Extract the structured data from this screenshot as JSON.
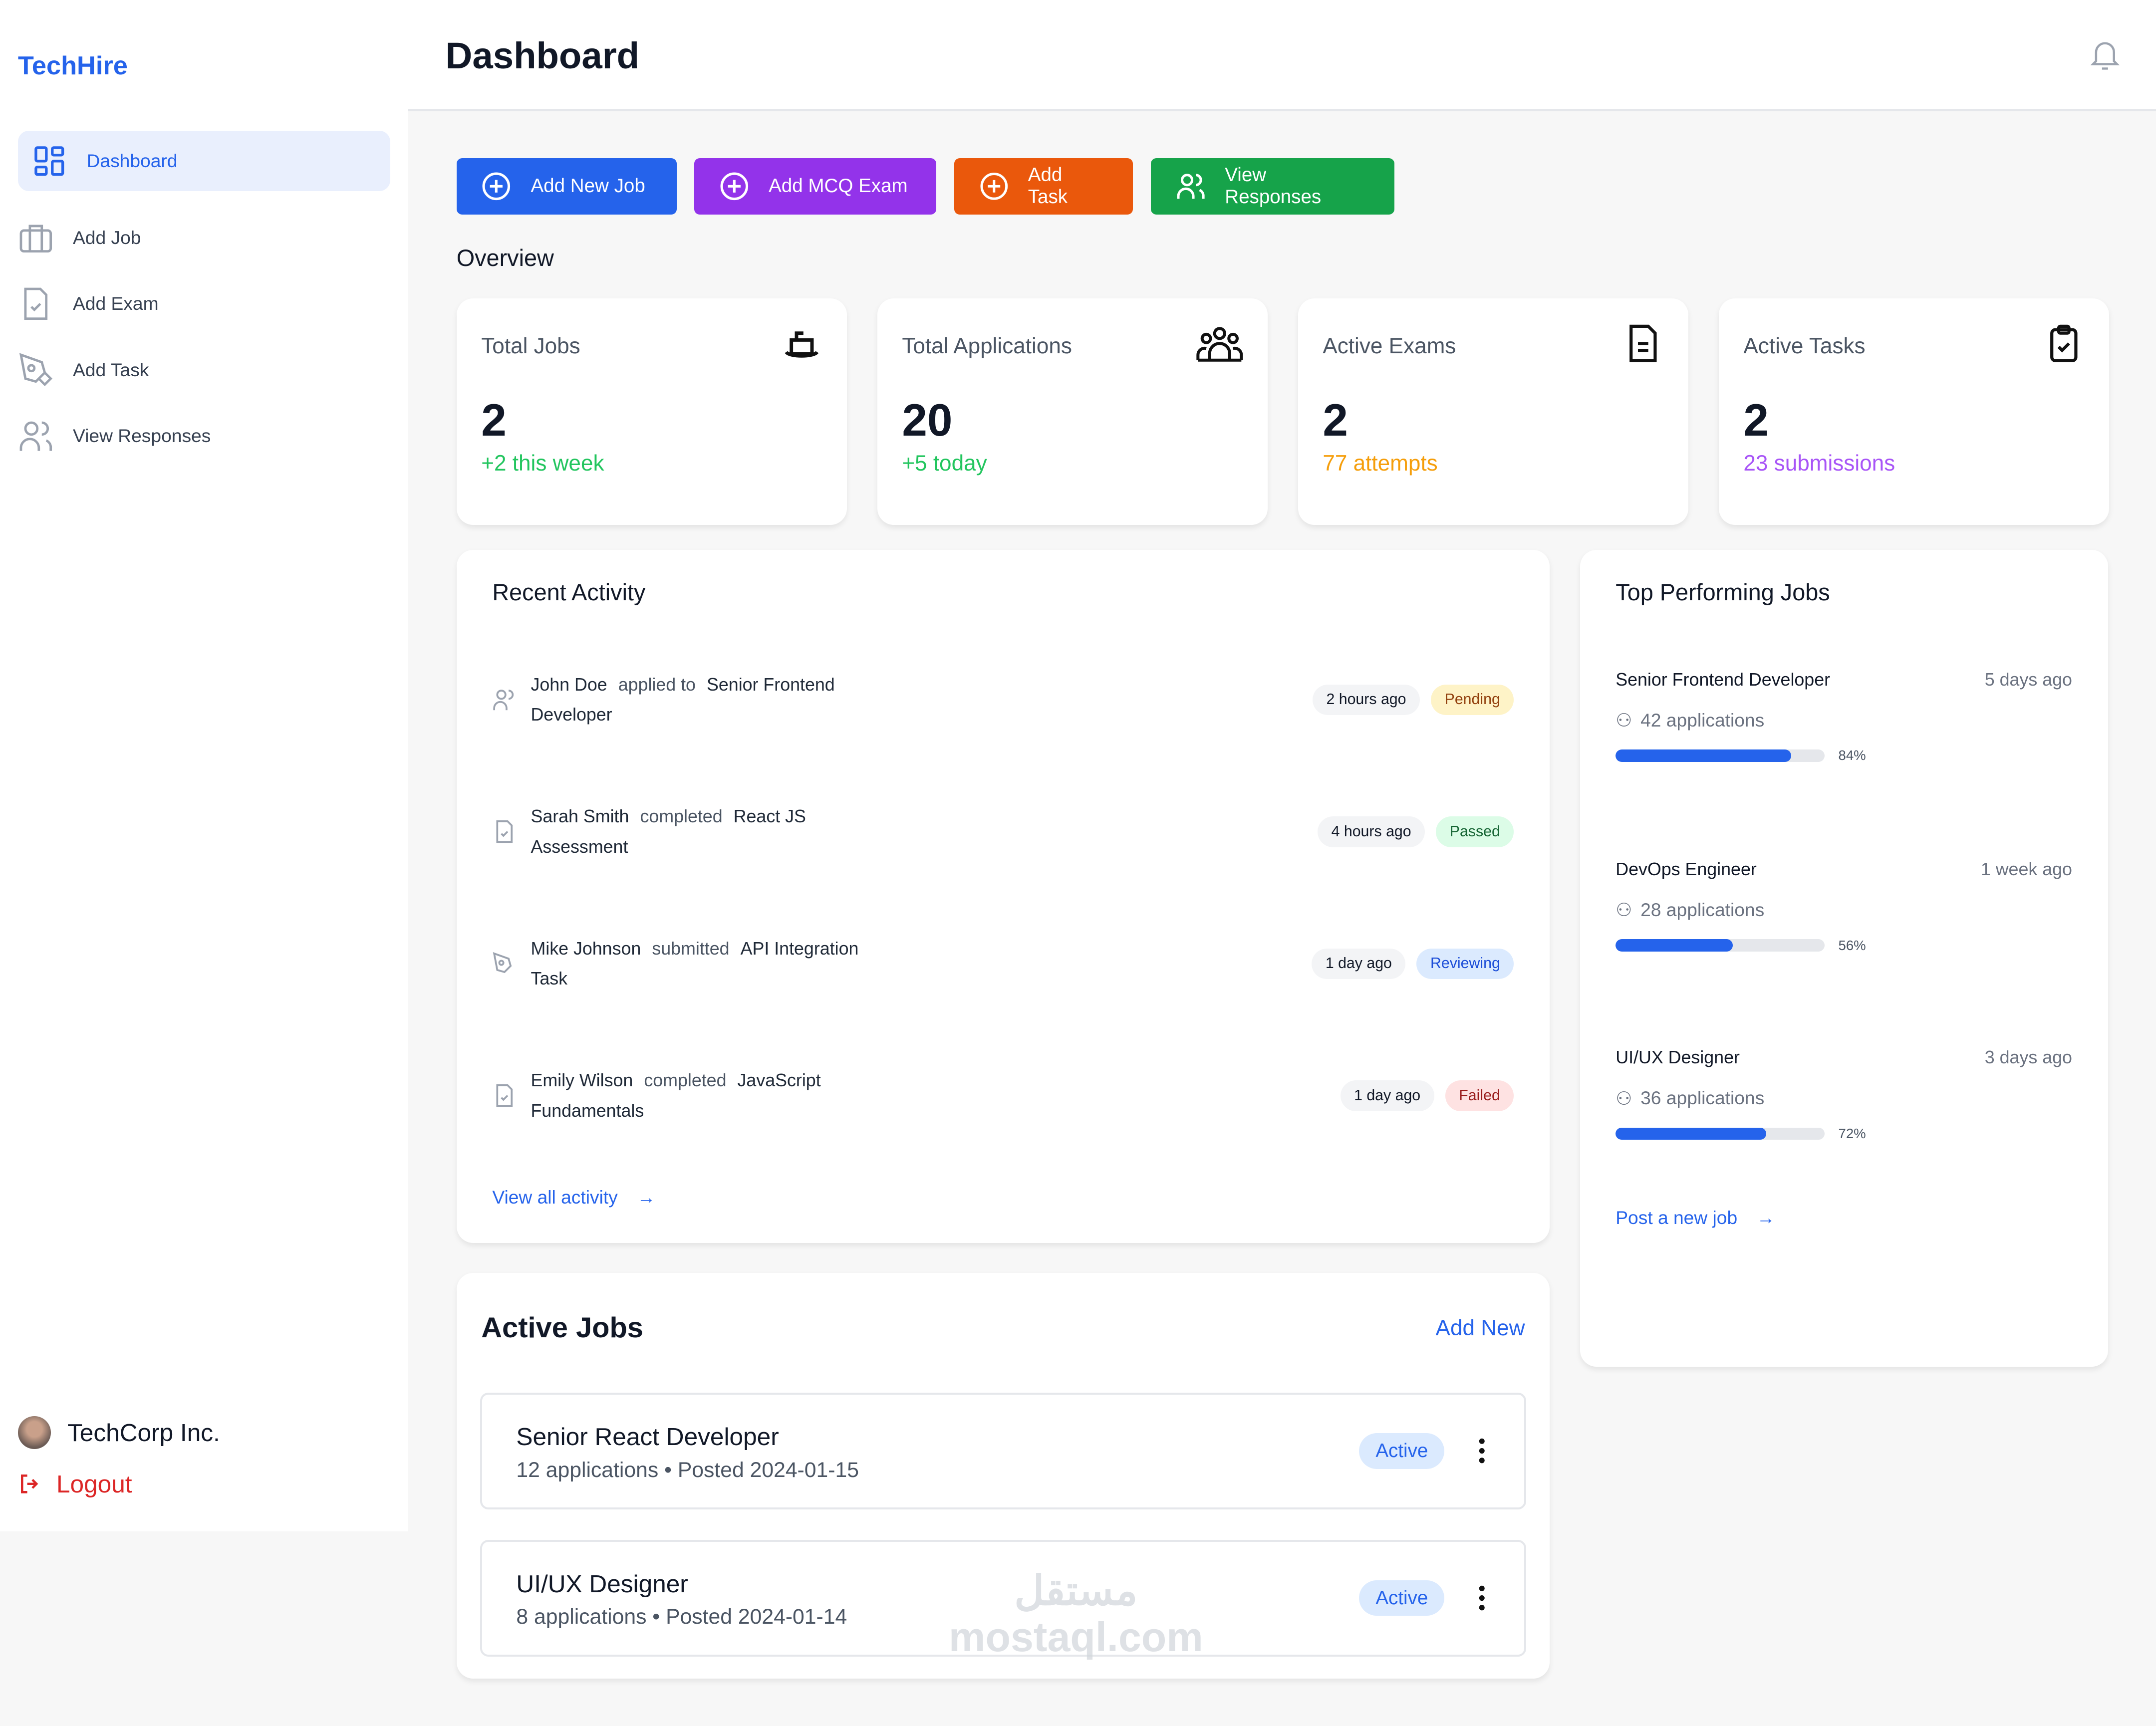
{
  "sidebar": {
    "logo": "TechHire",
    "items": [
      {
        "label": "Dashboard"
      },
      {
        "label": "Add Job"
      },
      {
        "label": "Add Exam"
      },
      {
        "label": "Add Task"
      },
      {
        "label": "View Responses"
      }
    ],
    "company": "TechCorp Inc.",
    "logout": "Logout"
  },
  "header": {
    "title": "Dashboard"
  },
  "actions": [
    {
      "label": "Add New Job",
      "color": "#2563eb"
    },
    {
      "label": "Add MCQ Exam",
      "color": "#9333ea"
    },
    {
      "label": "Add Task",
      "color": "#ea580c"
    },
    {
      "label": "View Responses",
      "color": "#16a34a"
    }
  ],
  "overview": {
    "title": "Overview",
    "stats": [
      {
        "label": "Total Jobs",
        "value": "2",
        "sub": "+2 this week",
        "color": "#22c55e"
      },
      {
        "label": "Total Applications",
        "value": "20",
        "sub": "+5 today",
        "color": "#22c55e"
      },
      {
        "label": "Active Exams",
        "value": "2",
        "sub": "77 attempts",
        "color": "#f59e0b"
      },
      {
        "label": "Active Tasks",
        "value": "2",
        "sub": "23 submissions",
        "color": "#a855f7"
      }
    ]
  },
  "recent": {
    "title": "Recent Activity",
    "items": [
      {
        "name": "John Doe",
        "verb": "applied to",
        "target": "Senior Frontend Developer",
        "time": "2 hours ago",
        "status": "Pending"
      },
      {
        "name": "Sarah Smith",
        "verb": "completed",
        "target": "React JS Assessment",
        "time": "4 hours ago",
        "status": "Passed"
      },
      {
        "name": "Mike Johnson",
        "verb": "submitted",
        "target": "API Integration Task",
        "time": "1 day ago",
        "status": "Reviewing"
      },
      {
        "name": "Emily Wilson",
        "verb": "completed",
        "target": "JavaScript Fundamentals",
        "time": "1 day ago",
        "status": "Failed"
      }
    ],
    "view_all": "View all activity"
  },
  "top": {
    "title": "Top Performing Jobs",
    "items": [
      {
        "title": "Senior Frontend  Developer",
        "date": "5 days ago",
        "apps": "42 applications",
        "pct": 84,
        "pct_label": "84%"
      },
      {
        "title": "DevOps  Engineer",
        "date": "1 week ago",
        "apps": "28 applications",
        "pct": 56,
        "pct_label": "56%"
      },
      {
        "title": "UI/UX Designer",
        "date": "3 days ago",
        "apps": "36  applications",
        "pct": 72,
        "pct_label": "72%"
      }
    ],
    "post": "Post a new job"
  },
  "active_jobs": {
    "title": "Active Jobs",
    "add": "Add New",
    "items": [
      {
        "title": "Senior React Developer",
        "meta": "12 applications • Posted 2024-01-15",
        "status": "Active"
      },
      {
        "title": "UI/UX Designer",
        "meta": "8 applications • Posted 2024-01-14",
        "status": "Active"
      }
    ]
  },
  "watermark": "mostaql.com"
}
